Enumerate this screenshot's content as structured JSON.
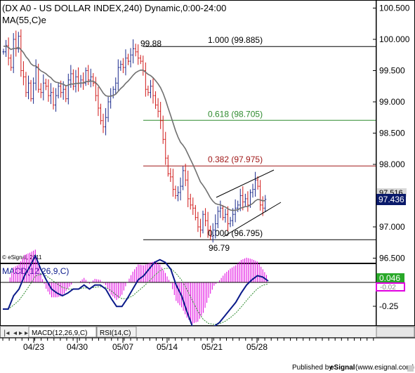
{
  "header": {
    "title": "(DX A0 - US DOLLAR INDEX,240) Dynamic,0:00-24:00",
    "ma_label": "MA(55,C)e"
  },
  "price_axis": {
    "ticks": [
      "100.500",
      "100.000",
      "99.500",
      "99.000",
      "98.500",
      "98.000",
      "97.000",
      "96.500"
    ],
    "tick_values": [
      100.5,
      100.0,
      99.5,
      99.0,
      98.5,
      98.0,
      97.0,
      96.5
    ],
    "hidden_value_label": "97.516",
    "current_price_label": "97.436"
  },
  "fibonacci": [
    {
      "label": "1.000 (99.885)",
      "value": 99.885,
      "color": "#000000"
    },
    {
      "label": "0.618 (98.705)",
      "value": 98.705,
      "color": "#2e8b2e"
    },
    {
      "label": "0.382 (97.975)",
      "value": 97.975,
      "color": "#a01818"
    },
    {
      "label": "0.000 (96.795)",
      "value": 96.795,
      "color": "#000000"
    }
  ],
  "annotations": {
    "high": {
      "label": "99.88",
      "value": 99.88
    },
    "low": {
      "label": "96.79",
      "value": 96.79
    },
    "copyright": "© eSignal, 2011"
  },
  "macd": {
    "label": "MACD(12,26,9,C)",
    "ticks": [
      "0.046",
      "-0.02",
      "-0.25"
    ],
    "tick_values": [
      0.046,
      -0.02,
      -0.25
    ],
    "zero_value": 0
  },
  "tabs": [
    {
      "label": "MACD(12,26,9,C)"
    },
    {
      "label": "RSI(14,C)"
    }
  ],
  "x_axis": {
    "labels": [
      "04/23",
      "04/30",
      "05/07",
      "05/14",
      "05/21",
      "05/28"
    ]
  },
  "footer": {
    "published_by": "Published by",
    "brand": "eSignal",
    "url": "(www.esignal.com)"
  },
  "colors": {
    "up_bar": "#1a2a8c",
    "down_bar": "#d01818",
    "ma_line": "#707070",
    "macd_line": "#0a1a8a",
    "signal_line": "#2e8b2e",
    "histogram": "#e000e0",
    "price_badge": "#0a1a6a",
    "macd_badge": "#28a828"
  },
  "chart_data": [
    {
      "type": "ohlc",
      "title": "(DX A0 - US DOLLAR INDEX,240) Dynamic,0:00-24:00",
      "ylim": [
        96.3,
        100.7
      ],
      "categories": [
        "04/23",
        "04/30",
        "05/07",
        "05/14",
        "05/21",
        "05/28"
      ],
      "indicator": "MA(55,C)e",
      "current": 97.436,
      "price_path": [
        99.8,
        99.9,
        99.7,
        99.55,
        100.0,
        99.85,
        100.05,
        99.5,
        99.4,
        99.15,
        99.3,
        99.05,
        99.3,
        99.55,
        99.2,
        99.15,
        99.3,
        99.25,
        99.1,
        99.15,
        98.95,
        99.1,
        99.25,
        99.15,
        99.2,
        99.05,
        99.35,
        99.45,
        99.25,
        99.4,
        99.3,
        99.35,
        99.3,
        99.5,
        99.35,
        99.4,
        99.3,
        99.1,
        98.9,
        98.7,
        98.6,
        98.75,
        99.0,
        99.1,
        99.2,
        99.3,
        99.55,
        99.6,
        99.55,
        99.7,
        99.65,
        99.75,
        99.85,
        99.8,
        99.7,
        99.65,
        99.5,
        99.2,
        99.15,
        99.25,
        99.1,
        98.95,
        98.85,
        98.7,
        98.4,
        98.1,
        97.85,
        97.8,
        97.6,
        97.5,
        97.55,
        97.65,
        97.9,
        97.75,
        97.45,
        97.35,
        97.3,
        97.15,
        97.0,
        96.95,
        97.2,
        97.1,
        96.95,
        96.85,
        96.95,
        97.05,
        97.25,
        97.3,
        97.15,
        97.2,
        97.05,
        97.1,
        97.2,
        97.3,
        97.35,
        97.5,
        97.4,
        97.45,
        97.35,
        97.55,
        97.6,
        97.75,
        97.65,
        97.35,
        97.3,
        97.44
      ]
    },
    {
      "type": "line",
      "title": "MACD(12,26,9,C)",
      "series": [
        {
          "name": "MACD(12,26,9,C)",
          "values": [
            -0.2,
            -0.2,
            -0.1,
            -0.05,
            0.05,
            0.12,
            0.2,
            0.1,
            0.02,
            -0.05,
            -0.08,
            -0.1,
            -0.08,
            -0.05,
            -0.05,
            -0.02,
            -0.05,
            -0.02,
            -0.02,
            -0.05,
            -0.12,
            -0.18,
            -0.18,
            -0.12,
            -0.05,
            0.02,
            0.05,
            0.1,
            0.15,
            0.17,
            0.15,
            0.1,
            -0.02,
            -0.1,
            -0.22,
            -0.33,
            -0.4,
            -0.42,
            -0.38,
            -0.33,
            -0.3,
            -0.25,
            -0.2,
            -0.15,
            -0.08,
            -0.02,
            0.02,
            0.05,
            0.04,
            0.01
          ]
        }
      ],
      "ylim": [
        -0.47,
        0.22
      ]
    }
  ]
}
